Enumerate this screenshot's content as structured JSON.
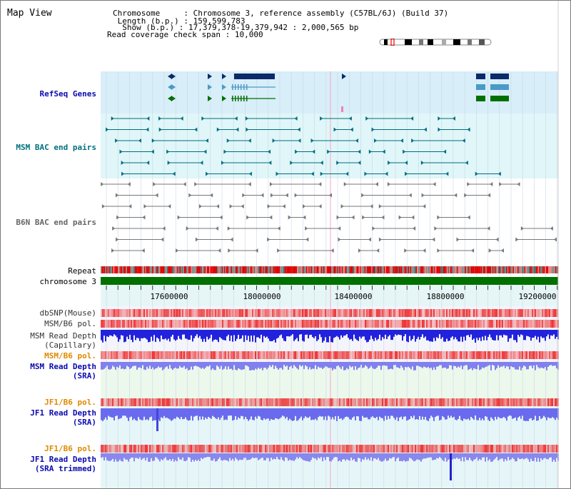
{
  "page": {
    "title": "Map View"
  },
  "header": {
    "chromosome_label": "Chromosome",
    "chromosome_value": "Chromosome 3, reference assembly (C57BL/6J) (Build 37)",
    "length_label": "Length (b.p.)",
    "length_value": "159,599,783",
    "show_label": "Show (b.p.)",
    "show_value": "17,379,378-19,379,942 : 2,000,565 bp",
    "coverage_label": "Read coverage check span",
    "coverage_value": "10,000"
  },
  "tracks": {
    "refseq": "RefSeq Genes",
    "msm_bac": "MSM BAC end pairs",
    "b6n_bac": "B6N BAC end pairs",
    "repeat": "Repeat",
    "chromosome": "chromosome 3",
    "dbsnp": "dbSNP(Mouse)",
    "msm_b6_pol": "MSM/B6 pol.",
    "msm_depth_cap_1": "MSM Read Depth",
    "msm_depth_cap_2": "(Capillary)",
    "msm_b6_pol_2": "MSM/B6 pol.",
    "msm_depth_sra_1": "MSM Read Depth",
    "msm_depth_sra_2": "(SRA)",
    "jf1_b6_pol": "JF1/B6 pol.",
    "jf1_depth_sra_1": "JF1 Read Depth",
    "jf1_depth_sra_2": "(SRA)",
    "jf1_b6_pol_2": "JF1/B6 pol.",
    "jf1_depth_trim_1": "JF1 Read Depth",
    "jf1_depth_trim_2": "(SRA trimmed)"
  },
  "axis": {
    "ticks": [
      "17600000",
      "18000000",
      "18400000",
      "18800000",
      "19200000"
    ]
  },
  "colors": {
    "refseq_band": "#d8eef8",
    "bac_band": "#e0f6f8",
    "teal": "#006d80",
    "gray": "#777777",
    "navy": "#0a2a6a",
    "green": "#007000",
    "blue_depth": "#2222dd",
    "light_blue_depth": "#7a7aee",
    "pol_red": "#ee3333",
    "label_blue": "#0a0ab0",
    "label_orange": "#e08a00",
    "label_teal": "#007080"
  }
}
